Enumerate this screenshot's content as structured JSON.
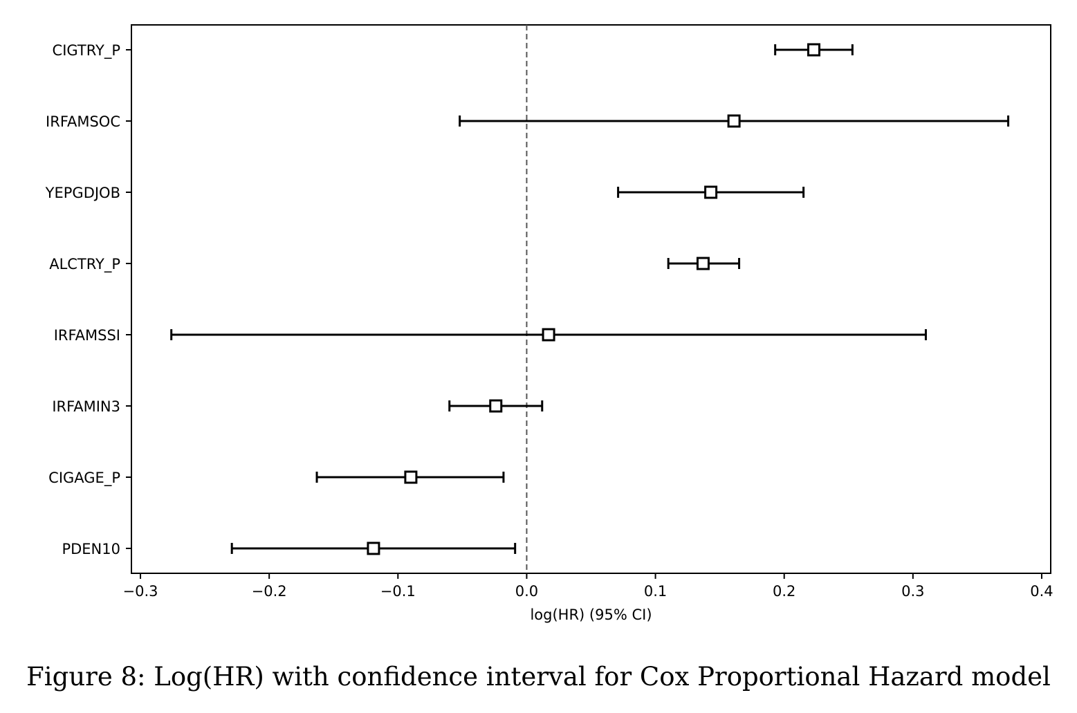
{
  "chart_data": {
    "type": "forest",
    "xlabel": "log(HR) (95% CI)",
    "ylabel": "",
    "xlim": [
      -0.307,
      0.407
    ],
    "xticks": [
      -0.3,
      -0.2,
      -0.1,
      0.0,
      0.1,
      0.2,
      0.3,
      0.4
    ],
    "xtick_labels": [
      "−0.3",
      "−0.2",
      "−0.1",
      "0.0",
      "0.1",
      "0.2",
      "0.3",
      "0.4"
    ],
    "reference_line": 0.0,
    "grid": false,
    "marker": "open-square",
    "rows": [
      {
        "label": "CIGTRY_P",
        "coef": 0.223,
        "lower": 0.193,
        "upper": 0.253
      },
      {
        "label": "IRFAMSOC",
        "coef": 0.161,
        "lower": -0.052,
        "upper": 0.374
      },
      {
        "label": "YEPGDJOB",
        "coef": 0.143,
        "lower": 0.071,
        "upper": 0.215
      },
      {
        "label": "ALCTRY_P",
        "coef": 0.137,
        "lower": 0.11,
        "upper": 0.165
      },
      {
        "label": "IRFAMSSI",
        "coef": 0.017,
        "lower": -0.276,
        "upper": 0.31
      },
      {
        "label": "IRFAMIN3",
        "coef": -0.024,
        "lower": -0.06,
        "upper": 0.012
      },
      {
        "label": "CIGAGE_P",
        "coef": -0.09,
        "lower": -0.163,
        "upper": -0.018
      },
      {
        "label": "PDEN10",
        "coef": -0.119,
        "lower": -0.229,
        "upper": -0.009
      }
    ]
  },
  "caption": "Figure 8: Log(HR) with confidence interval for Cox Proportional Hazard model"
}
